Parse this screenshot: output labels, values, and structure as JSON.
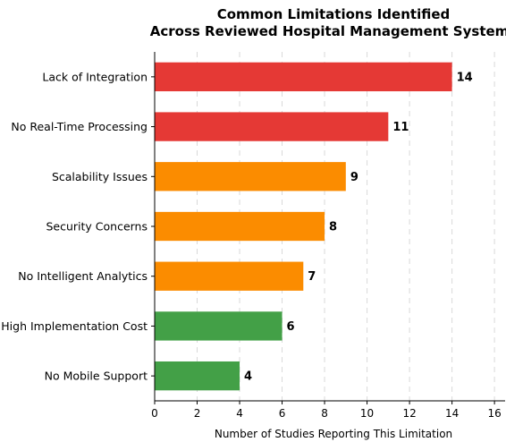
{
  "chart_data": {
    "type": "bar",
    "orientation": "horizontal",
    "title_lines": [
      "Common Limitations Identified",
      "Across Reviewed Hospital Management Systems"
    ],
    "xlabel": "Number of Studies Reporting This Limitation",
    "ylabel": "",
    "xlim": [
      0,
      16.5
    ],
    "x_ticks": [
      "0",
      "2",
      "4",
      "6",
      "8",
      "10",
      "12",
      "14",
      "16"
    ],
    "grid": "vertical-dashed",
    "categories": [
      "Lack of Integration",
      "No Real-Time Processing",
      "Scalability Issues",
      "Security Concerns",
      "No Intelligent Analytics",
      "High Implementation Cost",
      "No Mobile Support"
    ],
    "values": [
      14,
      11,
      9,
      8,
      7,
      6,
      4
    ],
    "value_labels": [
      "14",
      "11",
      "9",
      "8",
      "7",
      "6",
      "4"
    ],
    "bar_colors": [
      "#e53935",
      "#e53935",
      "#fb8c00",
      "#fb8c00",
      "#fb8c00",
      "#43a047",
      "#43a047"
    ]
  }
}
